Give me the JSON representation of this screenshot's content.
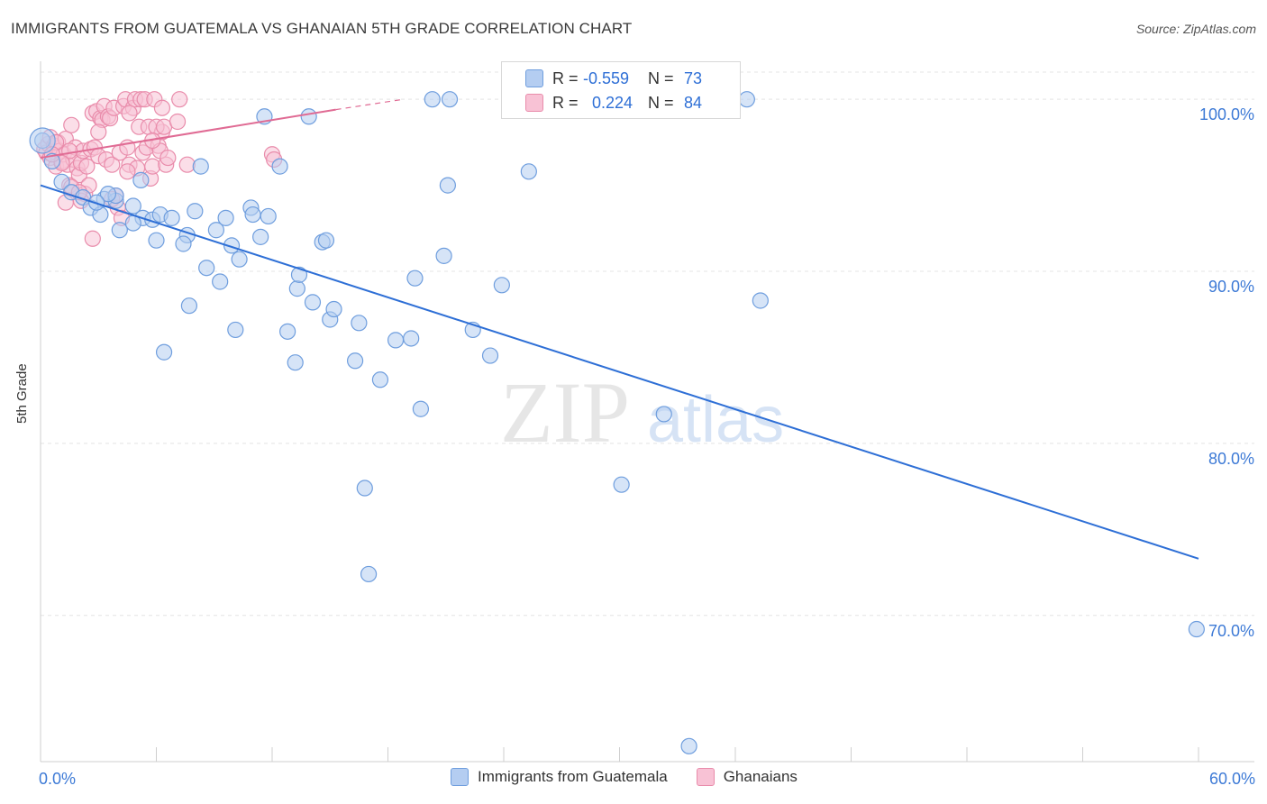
{
  "title": "IMMIGRANTS FROM GUATEMALA VS GHANAIAN 5TH GRADE CORRELATION CHART",
  "source": "Source: ZipAtlas.com",
  "watermark": {
    "zip": "ZIP",
    "atlas": "atlas"
  },
  "legend": {
    "r_label": "R =",
    "n_label": "N =",
    "series": [
      {
        "name": "Immigrants from Guatemala",
        "r": "-0.559",
        "n": "73",
        "fill": "#b4cdf1",
        "stroke": "#6f9ede"
      },
      {
        "name": "Ghanaians",
        "r": "0.224",
        "n": "84",
        "fill": "#f8c2d5",
        "stroke": "#e98cab"
      }
    ]
  },
  "chart_data": {
    "type": "scatter",
    "title": "IMMIGRANTS FROM GUATEMALA VS GHANAIAN 5TH GRADE CORRELATION CHART",
    "xlabel": "",
    "ylabel": "5th Grade",
    "xlim": [
      0,
      60
    ],
    "ylim": [
      61.5,
      102.0
    ],
    "x_tick_labels": [
      "0.0%",
      "60.0%"
    ],
    "y_ticks": [
      70,
      80,
      90,
      100
    ],
    "y_tick_labels": [
      "70.0%",
      "80.0%",
      "90.0%",
      "100.0%"
    ],
    "grid": true,
    "series": [
      {
        "name": "Immigrants from Guatemala",
        "color": "#6f9ede",
        "fill": "#b4cdf1",
        "trend": {
          "x": [
            0,
            60
          ],
          "y": [
            95.0,
            73.3
          ],
          "color": "#2e6fd6"
        },
        "points": [
          [
            0.1,
            97.6
          ],
          [
            0.6,
            96.4
          ],
          [
            1.1,
            95.2
          ],
          [
            1.6,
            94.6
          ],
          [
            2.2,
            94.3
          ],
          [
            2.6,
            93.7
          ],
          [
            3.3,
            94.2
          ],
          [
            3.9,
            94.1
          ],
          [
            3.1,
            93.3
          ],
          [
            3.9,
            94.4
          ],
          [
            4.1,
            92.4
          ],
          [
            5.3,
            93.1
          ],
          [
            5.2,
            95.3
          ],
          [
            4.8,
            92.8
          ],
          [
            5.8,
            93.0
          ],
          [
            6.2,
            93.3
          ],
          [
            6.0,
            91.8
          ],
          [
            6.8,
            93.1
          ],
          [
            6.4,
            85.3
          ],
          [
            7.6,
            92.1
          ],
          [
            7.4,
            91.6
          ],
          [
            7.7,
            88.0
          ],
          [
            8.0,
            93.5
          ],
          [
            8.3,
            96.1
          ],
          [
            8.6,
            90.2
          ],
          [
            9.1,
            92.4
          ],
          [
            9.3,
            89.4
          ],
          [
            9.6,
            93.1
          ],
          [
            9.9,
            91.5
          ],
          [
            10.1,
            86.6
          ],
          [
            10.3,
            90.7
          ],
          [
            10.9,
            93.7
          ],
          [
            11.4,
            92.0
          ],
          [
            11.6,
            99.0
          ],
          [
            11.8,
            93.2
          ],
          [
            12.4,
            96.1
          ],
          [
            12.8,
            86.5
          ],
          [
            13.2,
            84.7
          ],
          [
            13.3,
            89.0
          ],
          [
            13.4,
            89.8
          ],
          [
            13.9,
            99.0
          ],
          [
            14.1,
            88.2
          ],
          [
            14.6,
            91.7
          ],
          [
            14.8,
            91.8
          ],
          [
            15.0,
            87.2
          ],
          [
            15.2,
            87.8
          ],
          [
            16.3,
            84.8
          ],
          [
            16.5,
            87.0
          ],
          [
            16.8,
            77.4
          ],
          [
            17.0,
            72.4
          ],
          [
            17.6,
            83.7
          ],
          [
            18.4,
            86.0
          ],
          [
            19.2,
            86.1
          ],
          [
            19.4,
            89.6
          ],
          [
            19.7,
            82.0
          ],
          [
            20.3,
            100.0
          ],
          [
            21.2,
            100.0
          ],
          [
            20.9,
            90.9
          ],
          [
            21.1,
            95.0
          ],
          [
            22.4,
            86.6
          ],
          [
            23.3,
            85.1
          ],
          [
            23.9,
            89.2
          ],
          [
            25.3,
            95.8
          ],
          [
            30.1,
            77.6
          ],
          [
            32.3,
            81.7
          ],
          [
            33.6,
            62.4
          ],
          [
            36.6,
            100.0
          ],
          [
            37.3,
            88.3
          ],
          [
            59.9,
            69.2
          ],
          [
            3.5,
            94.5
          ],
          [
            4.8,
            93.8
          ],
          [
            2.9,
            94.0
          ],
          [
            11.0,
            93.3
          ]
        ]
      },
      {
        "name": "Ghanaians",
        "color": "#e98cab",
        "fill": "#f8c2d5",
        "trend": {
          "x": [
            0,
            15.3
          ],
          "y": [
            96.6,
            99.4
          ],
          "color": "#e06b94"
        },
        "trend_dashed": {
          "x": [
            15.3,
            18.8
          ],
          "y": [
            99.4,
            100.0
          ]
        },
        "points": [
          [
            0.2,
            97.1
          ],
          [
            0.3,
            96.9
          ],
          [
            0.4,
            97.4
          ],
          [
            0.5,
            97.8
          ],
          [
            0.5,
            96.6
          ],
          [
            0.7,
            97.3
          ],
          [
            0.8,
            96.1
          ],
          [
            0.9,
            97.5
          ],
          [
            1.0,
            97.0
          ],
          [
            1.1,
            96.4
          ],
          [
            1.2,
            96.8
          ],
          [
            1.3,
            97.7
          ],
          [
            1.4,
            96.2
          ],
          [
            1.5,
            95.0
          ],
          [
            1.6,
            98.5
          ],
          [
            1.7,
            96.5
          ],
          [
            1.8,
            97.2
          ],
          [
            1.9,
            96.0
          ],
          [
            2.0,
            95.6
          ],
          [
            2.1,
            96.3
          ],
          [
            2.2,
            97.0
          ],
          [
            2.3,
            94.5
          ],
          [
            2.4,
            96.1
          ],
          [
            2.5,
            95.0
          ],
          [
            2.1,
            94.1
          ],
          [
            2.6,
            97.1
          ],
          [
            2.7,
            99.2
          ],
          [
            2.8,
            97.2
          ],
          [
            2.9,
            99.3
          ],
          [
            3.0,
            96.7
          ],
          [
            3.1,
            98.9
          ],
          [
            3.2,
            98.8
          ],
          [
            3.3,
            99.6
          ],
          [
            3.4,
            96.5
          ],
          [
            3.5,
            99.0
          ],
          [
            3.6,
            98.9
          ],
          [
            3.7,
            96.2
          ],
          [
            3.8,
            99.5
          ],
          [
            3.9,
            94.4
          ],
          [
            4.0,
            93.7
          ],
          [
            4.1,
            96.9
          ],
          [
            4.2,
            93.1
          ],
          [
            3.7,
            94.2
          ],
          [
            4.3,
            99.6
          ],
          [
            4.4,
            100.0
          ],
          [
            4.5,
            97.2
          ],
          [
            4.6,
            96.2
          ],
          [
            4.8,
            99.5
          ],
          [
            4.9,
            100.0
          ],
          [
            5.0,
            96.0
          ],
          [
            5.1,
            98.4
          ],
          [
            5.2,
            100.0
          ],
          [
            5.3,
            96.9
          ],
          [
            5.4,
            100.0
          ],
          [
            5.5,
            97.2
          ],
          [
            5.6,
            98.4
          ],
          [
            5.7,
            95.4
          ],
          [
            5.8,
            96.1
          ],
          [
            5.9,
            100.0
          ],
          [
            6.1,
            97.3
          ],
          [
            6.3,
            99.5
          ],
          [
            6.5,
            96.2
          ],
          [
            6.2,
            97.0
          ],
          [
            6.3,
            98.1
          ],
          [
            6.0,
            98.4
          ],
          [
            6.4,
            98.4
          ],
          [
            6.6,
            96.6
          ],
          [
            7.1,
            98.7
          ],
          [
            7.2,
            100.0
          ],
          [
            7.6,
            96.2
          ],
          [
            12.0,
            96.8
          ],
          [
            12.1,
            96.5
          ],
          [
            1.3,
            94.0
          ],
          [
            1.6,
            94.9
          ],
          [
            2.7,
            91.9
          ],
          [
            2.0,
            94.6
          ],
          [
            1.5,
            97.0
          ],
          [
            1.1,
            96.3
          ],
          [
            0.8,
            97.5
          ],
          [
            0.6,
            96.8
          ],
          [
            4.5,
            95.8
          ],
          [
            5.8,
            97.6
          ],
          [
            3.0,
            98.1
          ],
          [
            4.6,
            99.2
          ]
        ]
      }
    ]
  }
}
